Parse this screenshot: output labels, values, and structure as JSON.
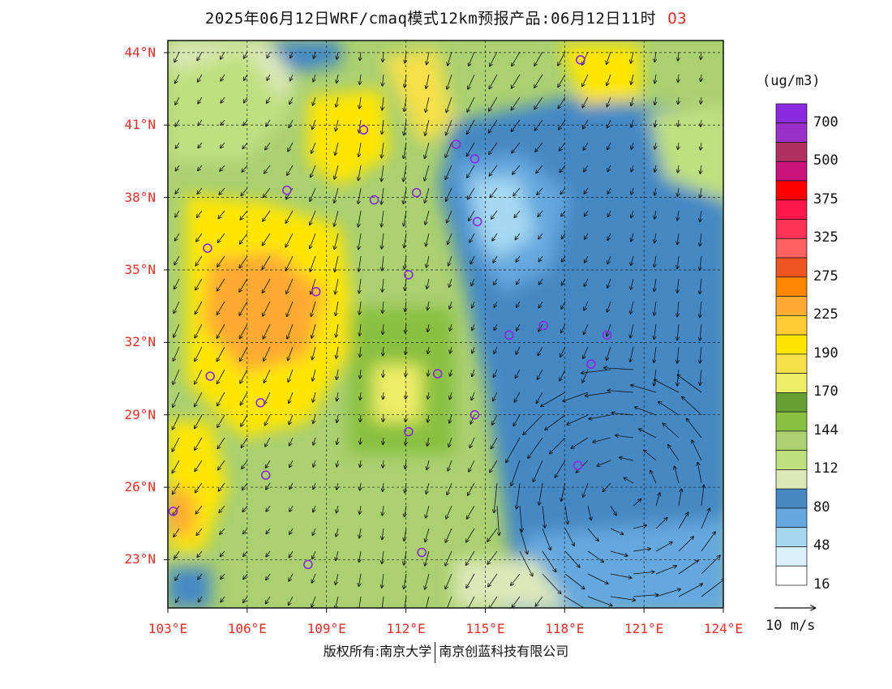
{
  "title": {
    "main": "2025年06月12日WRF/cmaq模式12km预报产品:06月12日11时",
    "species": "O3"
  },
  "axes": {
    "lat_labels": [
      "44°N",
      "41°N",
      "38°N",
      "35°N",
      "32°N",
      "29°N",
      "26°N",
      "23°N"
    ],
    "lat_values": [
      44,
      41,
      38,
      35,
      32,
      29,
      26,
      23
    ],
    "lon_labels": [
      "103°E",
      "106°E",
      "109°E",
      "112°E",
      "115°E",
      "118°E",
      "121°E",
      "124°E"
    ],
    "lon_values": [
      103,
      106,
      109,
      112,
      115,
      118,
      121,
      124
    ],
    "lon_range": [
      103,
      124
    ],
    "lat_range": [
      21,
      44.5
    ]
  },
  "colorbar": {
    "unit": "(ug/m3)",
    "labels": [
      "700",
      "500",
      "375",
      "325",
      "275",
      "225",
      "190",
      "170",
      "144",
      "112",
      "80",
      "48",
      "16"
    ],
    "colors_top_to_bottom": [
      "#8a2be2",
      "#9b30c8",
      "#b03060",
      "#c8147a",
      "#ff0000",
      "#ff1a4b",
      "#ff3355",
      "#ff6060",
      "#ee5522",
      "#ff8800",
      "#ffaa33",
      "#ffcc33",
      "#ffe600",
      "#f5e04a",
      "#eeee66",
      "#66a030",
      "#88c040",
      "#aad070",
      "#c0e080",
      "#dde8b8",
      "#4488c4",
      "#66a8dd",
      "#a6d8f2",
      "#d8f0fa",
      "#ffffff"
    ]
  },
  "vector_reference": {
    "label": "10 m/s"
  },
  "stations": [
    {
      "lon": 118.6,
      "lat": 43.7
    },
    {
      "lon": 110.4,
      "lat": 40.8
    },
    {
      "lon": 113.9,
      "lat": 40.2
    },
    {
      "lon": 114.6,
      "lat": 39.6
    },
    {
      "lon": 107.5,
      "lat": 38.3
    },
    {
      "lon": 110.8,
      "lat": 37.9
    },
    {
      "lon": 112.4,
      "lat": 38.2
    },
    {
      "lon": 114.7,
      "lat": 37.0
    },
    {
      "lon": 104.5,
      "lat": 35.9
    },
    {
      "lon": 112.1,
      "lat": 34.8
    },
    {
      "lon": 108.6,
      "lat": 34.1
    },
    {
      "lon": 115.9,
      "lat": 32.3
    },
    {
      "lon": 117.2,
      "lat": 32.7
    },
    {
      "lon": 119.0,
      "lat": 31.1
    },
    {
      "lon": 119.6,
      "lat": 32.3
    },
    {
      "lon": 104.6,
      "lat": 30.6
    },
    {
      "lon": 113.2,
      "lat": 30.7
    },
    {
      "lon": 106.5,
      "lat": 29.5
    },
    {
      "lon": 114.6,
      "lat": 29.0
    },
    {
      "lon": 112.1,
      "lat": 28.3
    },
    {
      "lon": 106.7,
      "lat": 26.5
    },
    {
      "lon": 118.5,
      "lat": 26.9
    },
    {
      "lon": 103.2,
      "lat": 25.0
    },
    {
      "lon": 112.6,
      "lat": 23.3
    },
    {
      "lon": 108.3,
      "lat": 22.8
    }
  ],
  "credit": {
    "left": "版权所有:南京大学",
    "right": "南京创蓝科技有限公司"
  }
}
